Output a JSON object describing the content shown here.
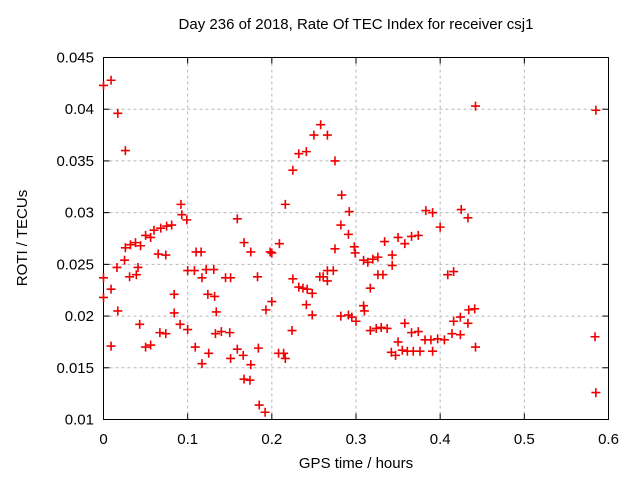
{
  "chart_data": {
    "type": "scatter",
    "title": "Day 236 of 2018, Rate Of TEC Index for receiver csj1",
    "xlabel": "GPS time / hours",
    "ylabel": "ROTI / TECUs",
    "xlim": [
      0,
      0.6
    ],
    "ylim": [
      0.01,
      0.045
    ],
    "xticks": [
      0,
      0.1,
      0.2,
      0.3,
      0.4,
      0.5,
      0.6
    ],
    "xtick_labels": [
      "0",
      "0.1",
      "0.2",
      "0.3",
      "0.4",
      "0.5",
      "0.6"
    ],
    "yticks": [
      0.01,
      0.015,
      0.02,
      0.025,
      0.03,
      0.035,
      0.04,
      0.045
    ],
    "ytick_labels": [
      "0.01",
      "0.015",
      "0.02",
      "0.025",
      "0.03",
      "0.035",
      "0.04",
      "0.045"
    ],
    "grid": true,
    "legend": "none",
    "colors": {
      "marker": "#ee0000",
      "grid": "#b8b8b8",
      "axis": "#000000",
      "background": "#ffffff"
    },
    "marker": {
      "shape": "plus",
      "size": 9
    },
    "points": [
      [
        0.0,
        0.0423
      ],
      [
        0.009,
        0.0428
      ],
      [
        0.017,
        0.0396
      ],
      [
        0.026,
        0.036
      ],
      [
        0.092,
        0.0308
      ],
      [
        0.093,
        0.0298
      ],
      [
        0.099,
        0.0293
      ],
      [
        0.081,
        0.0288
      ],
      [
        0.075,
        0.0287
      ],
      [
        0.068,
        0.0285
      ],
      [
        0.06,
        0.0283
      ],
      [
        0.05,
        0.0278
      ],
      [
        0.056,
        0.0276
      ],
      [
        0.038,
        0.0271
      ],
      [
        0.032,
        0.0269
      ],
      [
        0.044,
        0.0268
      ],
      [
        0.026,
        0.0266
      ],
      [
        0.065,
        0.026
      ],
      [
        0.074,
        0.0259
      ],
      [
        0.025,
        0.0254
      ],
      [
        0.016,
        0.0247
      ],
      [
        0.041,
        0.0247
      ],
      [
        0.039,
        0.024
      ],
      [
        0.031,
        0.0238
      ],
      [
        0.0,
        0.0237
      ],
      [
        0.009,
        0.0226
      ],
      [
        0.0,
        0.0218
      ],
      [
        0.017,
        0.0205
      ],
      [
        0.084,
        0.0221
      ],
      [
        0.084,
        0.0203
      ],
      [
        0.043,
        0.0192
      ],
      [
        0.091,
        0.0192
      ],
      [
        0.1,
        0.0187
      ],
      [
        0.067,
        0.0184
      ],
      [
        0.074,
        0.0183
      ],
      [
        0.056,
        0.0172
      ],
      [
        0.05,
        0.017
      ],
      [
        0.009,
        0.0171
      ],
      [
        0.11,
        0.0262
      ],
      [
        0.116,
        0.0262
      ],
      [
        0.1,
        0.0244
      ],
      [
        0.108,
        0.0244
      ],
      [
        0.122,
        0.0245
      ],
      [
        0.131,
        0.0245
      ],
      [
        0.117,
        0.0237
      ],
      [
        0.124,
        0.0221
      ],
      [
        0.132,
        0.0219
      ],
      [
        0.134,
        0.0204
      ],
      [
        0.109,
        0.017
      ],
      [
        0.125,
        0.0164
      ],
      [
        0.117,
        0.0154
      ],
      [
        0.133,
        0.0183
      ],
      [
        0.14,
        0.0185
      ],
      [
        0.15,
        0.0184
      ],
      [
        0.145,
        0.0237
      ],
      [
        0.151,
        0.0237
      ],
      [
        0.183,
        0.0238
      ],
      [
        0.167,
        0.0271
      ],
      [
        0.175,
        0.0262
      ],
      [
        0.198,
        0.0262
      ],
      [
        0.159,
        0.0294
      ],
      [
        0.151,
        0.0159
      ],
      [
        0.159,
        0.0168
      ],
      [
        0.166,
        0.0162
      ],
      [
        0.175,
        0.0153
      ],
      [
        0.184,
        0.0169
      ],
      [
        0.167,
        0.0139
      ],
      [
        0.174,
        0.0138
      ],
      [
        0.185,
        0.0114
      ],
      [
        0.192,
        0.0107
      ],
      [
        0.193,
        0.0206
      ],
      [
        0.2,
        0.0214
      ],
      [
        0.208,
        0.0164
      ],
      [
        0.214,
        0.0164
      ],
      [
        0.216,
        0.0159
      ],
      [
        0.2,
        0.0261
      ],
      [
        0.209,
        0.027
      ],
      [
        0.216,
        0.0308
      ],
      [
        0.225,
        0.0341
      ],
      [
        0.232,
        0.0357
      ],
      [
        0.241,
        0.0359
      ],
      [
        0.25,
        0.0375
      ],
      [
        0.258,
        0.0385
      ],
      [
        0.266,
        0.0375
      ],
      [
        0.275,
        0.035
      ],
      [
        0.283,
        0.0317
      ],
      [
        0.292,
        0.0301
      ],
      [
        0.282,
        0.0288
      ],
      [
        0.291,
        0.0279
      ],
      [
        0.275,
        0.0265
      ],
      [
        0.298,
        0.0267
      ],
      [
        0.299,
        0.0261
      ],
      [
        0.266,
        0.0244
      ],
      [
        0.273,
        0.0244
      ],
      [
        0.257,
        0.0238
      ],
      [
        0.261,
        0.0238
      ],
      [
        0.266,
        0.0234
      ],
      [
        0.225,
        0.0236
      ],
      [
        0.224,
        0.0186
      ],
      [
        0.232,
        0.0228
      ],
      [
        0.237,
        0.0227
      ],
      [
        0.242,
        0.0226
      ],
      [
        0.248,
        0.0222
      ],
      [
        0.241,
        0.0211
      ],
      [
        0.248,
        0.0201
      ],
      [
        0.282,
        0.02
      ],
      [
        0.291,
        0.0201
      ],
      [
        0.295,
        0.0199
      ],
      [
        0.3,
        0.0195
      ],
      [
        0.309,
        0.0254
      ],
      [
        0.314,
        0.0252
      ],
      [
        0.32,
        0.0255
      ],
      [
        0.326,
        0.0257
      ],
      [
        0.334,
        0.0272
      ],
      [
        0.35,
        0.0276
      ],
      [
        0.358,
        0.027
      ],
      [
        0.366,
        0.0277
      ],
      [
        0.374,
        0.0278
      ],
      [
        0.343,
        0.0259
      ],
      [
        0.343,
        0.0249
      ],
      [
        0.317,
        0.0227
      ],
      [
        0.309,
        0.021
      ],
      [
        0.31,
        0.0205
      ],
      [
        0.317,
        0.0186
      ],
      [
        0.324,
        0.0188
      ],
      [
        0.33,
        0.0189
      ],
      [
        0.337,
        0.0188
      ],
      [
        0.326,
        0.024
      ],
      [
        0.332,
        0.024
      ],
      [
        0.358,
        0.0193
      ],
      [
        0.366,
        0.0184
      ],
      [
        0.374,
        0.0185
      ],
      [
        0.35,
        0.0175
      ],
      [
        0.342,
        0.0165
      ],
      [
        0.347,
        0.0162
      ],
      [
        0.355,
        0.0167
      ],
      [
        0.361,
        0.0166
      ],
      [
        0.368,
        0.0166
      ],
      [
        0.376,
        0.0166
      ],
      [
        0.391,
        0.0166
      ],
      [
        0.383,
        0.0302
      ],
      [
        0.391,
        0.03
      ],
      [
        0.4,
        0.0286
      ],
      [
        0.382,
        0.0177
      ],
      [
        0.389,
        0.0177
      ],
      [
        0.397,
        0.0178
      ],
      [
        0.405,
        0.0177
      ],
      [
        0.409,
        0.024
      ],
      [
        0.416,
        0.0243
      ],
      [
        0.425,
        0.0303
      ],
      [
        0.433,
        0.0295
      ],
      [
        0.434,
        0.0206
      ],
      [
        0.441,
        0.0207
      ],
      [
        0.416,
        0.0195
      ],
      [
        0.424,
        0.0199
      ],
      [
        0.433,
        0.0193
      ],
      [
        0.414,
        0.0183
      ],
      [
        0.424,
        0.0182
      ],
      [
        0.442,
        0.017
      ],
      [
        0.442,
        0.0403
      ],
      [
        0.585,
        0.0399
      ],
      [
        0.584,
        0.018
      ],
      [
        0.585,
        0.0126
      ]
    ]
  }
}
